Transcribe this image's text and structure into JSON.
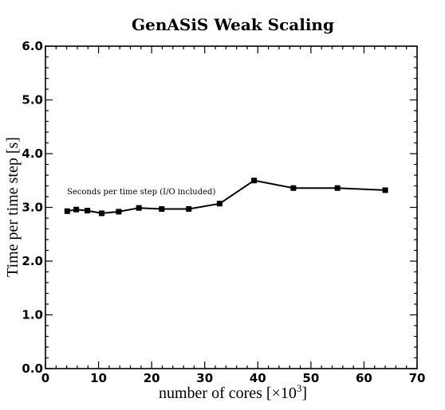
{
  "chart_data": {
    "type": "line",
    "title": "GenASiS Weak Scaling",
    "xlabel": "number of cores [×10",
    "xlabel_sup": "3",
    "xlabel_end": "]",
    "ylabel": "Time per time step [s]",
    "xlim": [
      0,
      70
    ],
    "ylim": [
      0.0,
      6.0
    ],
    "x_ticks": [
      0,
      10,
      20,
      30,
      40,
      50,
      60,
      70
    ],
    "x_tick_labels": [
      "0",
      "10",
      "20",
      "30",
      "40",
      "50",
      "60",
      "70"
    ],
    "y_ticks": [
      0.0,
      1.0,
      2.0,
      3.0,
      4.0,
      5.0,
      6.0
    ],
    "y_tick_labels": [
      "0.0",
      "1.0",
      "2.0",
      "3.0",
      "4.0",
      "5.0",
      "6.0"
    ],
    "grid": false,
    "annotation": "Seconds per time step (I/O included)",
    "series": [
      {
        "x": [
          4.1,
          5.8,
          7.9,
          10.6,
          13.8,
          17.6,
          21.9,
          27.0,
          32.8,
          39.3,
          46.7,
          55.0,
          64.0
        ],
        "y": [
          2.93,
          2.96,
          2.94,
          2.89,
          2.92,
          2.99,
          2.97,
          2.97,
          3.07,
          3.5,
          3.36,
          3.36,
          3.32
        ],
        "color": "#000000",
        "marker": "square"
      }
    ]
  }
}
